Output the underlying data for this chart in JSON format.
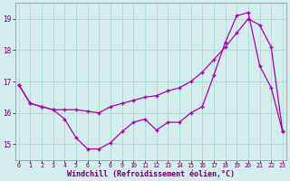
{
  "curve1_x": [
    0,
    1,
    2,
    3,
    4,
    5,
    6,
    7,
    8,
    9,
    10,
    11,
    12,
    13,
    14,
    15,
    16,
    17,
    18,
    19,
    20,
    21,
    22,
    23
  ],
  "curve1_y": [
    16.9,
    16.3,
    16.2,
    16.1,
    15.8,
    15.2,
    14.85,
    14.85,
    15.05,
    15.4,
    15.7,
    15.8,
    15.45,
    15.7,
    15.7,
    16.0,
    16.2,
    17.2,
    18.25,
    19.1,
    19.2,
    17.5,
    16.8,
    15.4
  ],
  "curve2_x": [
    0,
    1,
    2,
    3,
    4,
    5,
    6,
    7,
    8,
    9,
    10,
    11,
    12,
    13,
    14,
    15,
    16,
    17,
    18,
    19,
    20,
    21,
    22,
    23
  ],
  "curve2_y": [
    16.9,
    16.3,
    16.2,
    16.1,
    16.1,
    16.1,
    16.05,
    16.0,
    16.2,
    16.3,
    16.4,
    16.5,
    16.55,
    16.7,
    16.8,
    17.0,
    17.3,
    17.7,
    18.1,
    18.55,
    19.0,
    18.8,
    18.1,
    15.4
  ],
  "line_color": "#aa00aa",
  "marker_color": "#aa00aa",
  "bg_color": "#d4eeee",
  "grid_color": "#aadddd",
  "axis_color": "#666666",
  "tick_color": "#660066",
  "xlabel": "Windchill (Refroidissement éolien,°C)",
  "xlabel_color": "#660066",
  "yticks": [
    15,
    16,
    17,
    18,
    19
  ],
  "xticks": [
    0,
    1,
    2,
    3,
    4,
    5,
    6,
    7,
    8,
    9,
    10,
    11,
    12,
    13,
    14,
    15,
    16,
    17,
    18,
    19,
    20,
    21,
    22,
    23
  ],
  "xlim": [
    -0.3,
    23.3
  ],
  "ylim": [
    14.5,
    19.5
  ]
}
